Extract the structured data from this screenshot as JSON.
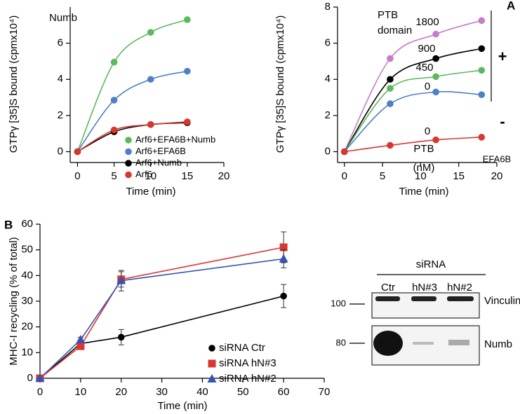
{
  "panel_labels": [
    "A",
    "B"
  ],
  "chart_data": [
    {
      "type": "line",
      "title": "Numb",
      "smooth": true,
      "x_label": "Time (min)",
      "y_label": "GTPγ [35]S bound (cpmx10⁴)",
      "xlim": [
        -1,
        20
      ],
      "ylim": [
        -0.6,
        8
      ],
      "xticks": [
        0,
        5,
        10,
        15,
        20
      ],
      "yticks": [
        0,
        2,
        4,
        6
      ],
      "legend": "lower right",
      "x": [
        0,
        5,
        10,
        15
      ],
      "series": [
        {
          "name": "Arf6+EFA6B+Numb",
          "color": "#5cb85c",
          "marker": "circle",
          "values": [
            0,
            4.95,
            6.6,
            7.3
          ]
        },
        {
          "name": "Arf6+EFA6B",
          "color": "#4f7fc4",
          "marker": "circle",
          "values": [
            0,
            2.85,
            4.0,
            4.45
          ]
        },
        {
          "name": "Arf6+Numb",
          "color": "#000000",
          "marker": "circle",
          "values": [
            0,
            1.1,
            1.5,
            1.6
          ]
        },
        {
          "name": "Arf6",
          "color": "#d9362f",
          "marker": "circle",
          "values": [
            0,
            1.2,
            1.5,
            1.65
          ]
        }
      ]
    },
    {
      "type": "line",
      "title_lines": [
        "PTB",
        "domain"
      ],
      "smooth": true,
      "x_label": "Time (min)",
      "y_label": "GTPγ [35]S bound (cpmx10⁴)",
      "xlim": [
        -0.9,
        20
      ],
      "ylim": [
        -0.6,
        8
      ],
      "xticks": [
        0,
        5,
        10,
        15,
        20
      ],
      "yticks": [
        0,
        2,
        4,
        6,
        8
      ],
      "x": [
        0,
        6,
        12,
        18
      ],
      "series": [
        {
          "name": "1800",
          "color": "#c77bc8",
          "marker": "circle",
          "values": [
            0,
            5.15,
            6.5,
            7.25
          ]
        },
        {
          "name": "900",
          "color": "#000000",
          "marker": "circle",
          "values": [
            0,
            4.0,
            5.15,
            5.7
          ]
        },
        {
          "name": "450",
          "color": "#5cb85c",
          "marker": "circle",
          "values": [
            0,
            3.5,
            4.15,
            4.5
          ]
        },
        {
          "name": "0",
          "color": "#4f7fc4",
          "marker": "circle",
          "values": [
            0,
            2.65,
            3.3,
            3.15
          ]
        },
        {
          "name": "0",
          "color": "#d9362f",
          "marker": "circle",
          "values": [
            0,
            0.35,
            0.65,
            0.8
          ]
        }
      ],
      "annotations": [
        "PTB",
        "(nM)",
        "+",
        "-",
        "EFA6B"
      ]
    },
    {
      "type": "line",
      "smooth": false,
      "x_label": "Time (min)",
      "y_label": "MHC-I recycling (% of total)",
      "xlim": [
        0,
        70
      ],
      "ylim": [
        0,
        60
      ],
      "xticks": [
        0,
        10,
        20,
        30,
        40,
        50,
        60,
        70
      ],
      "yticks": [
        0,
        10,
        20,
        30,
        40,
        50,
        60
      ],
      "legend": "lower right",
      "x": [
        0,
        10,
        20,
        60
      ],
      "series": [
        {
          "name": "siRNA Ctr",
          "color": "#000000",
          "marker": "circle",
          "values": [
            0,
            13.5,
            16,
            32
          ],
          "errors": [
            0,
            1,
            3,
            4.5
          ]
        },
        {
          "name": "siRNA hN#3",
          "color": "#d9362f",
          "marker": "square",
          "values": [
            0,
            12.5,
            38.5,
            51
          ],
          "errors": [
            0,
            1,
            3,
            6
          ]
        },
        {
          "name": "siRNA hN#2",
          "color": "#3454b4",
          "marker": "triangle",
          "values": [
            0,
            15,
            38,
            46.5
          ],
          "errors": [
            0,
            1,
            4,
            3.5
          ]
        }
      ]
    }
  ],
  "blot": {
    "header": "siRNA",
    "lanes": [
      "Ctr",
      "hN#3",
      "hN#2"
    ],
    "markers": [
      "100",
      "80"
    ],
    "proteins": [
      "Vinculin",
      "Numb"
    ]
  }
}
